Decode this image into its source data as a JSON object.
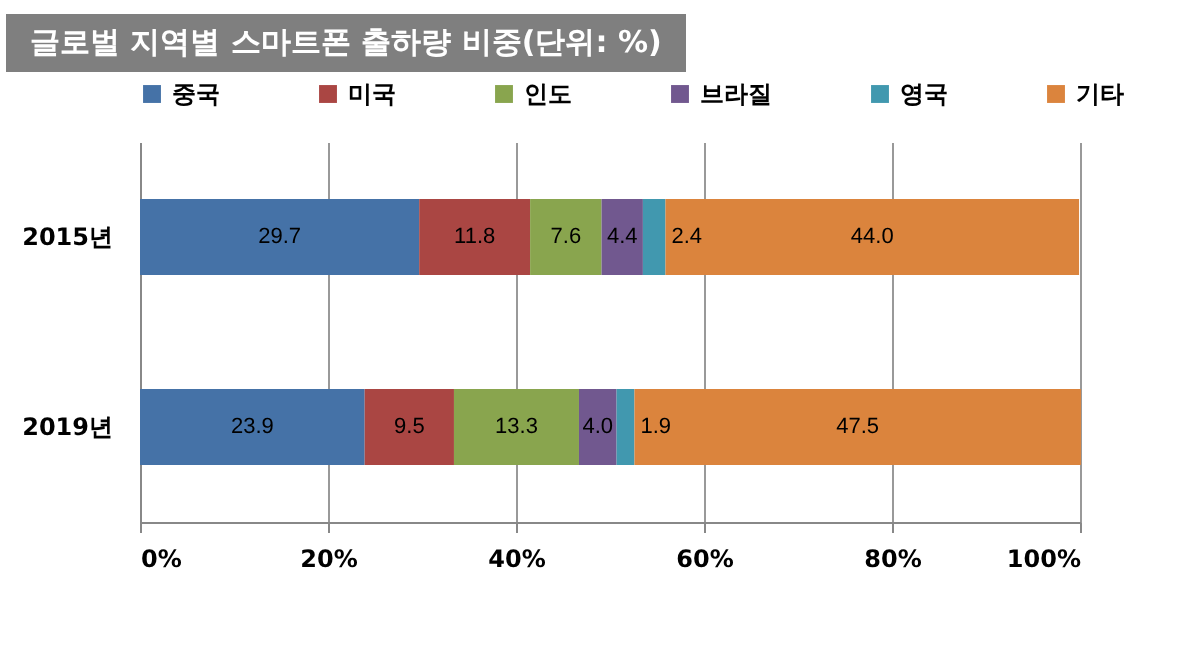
{
  "chart_data": {
    "type": "bar",
    "orientation": "horizontal",
    "stacked": true,
    "title": "글로벌 지역별 스마트폰 출하량 비중(단위: %)",
    "categories": [
      "2015년",
      "2019년"
    ],
    "series": [
      {
        "name": "중국",
        "color": "#4572a7",
        "values": [
          29.7,
          23.9
        ],
        "value_labels": [
          "29.7",
          "23.9"
        ]
      },
      {
        "name": "미국",
        "color": "#aa4643",
        "values": [
          11.8,
          9.5
        ],
        "value_labels": [
          "11.8",
          "9.5"
        ]
      },
      {
        "name": "인도",
        "color": "#89a54e",
        "values": [
          7.6,
          13.3
        ],
        "value_labels": [
          "7.6",
          "13.3"
        ]
      },
      {
        "name": "브라질",
        "color": "#71588f",
        "values": [
          4.4,
          4.0
        ],
        "value_labels": [
          "4.4",
          "4.0"
        ]
      },
      {
        "name": "영국",
        "color": "#4198af",
        "values": [
          2.4,
          1.9
        ],
        "value_labels": [
          "2.4",
          "1.9"
        ]
      },
      {
        "name": "기타",
        "color": "#db843d",
        "values": [
          44.0,
          47.5
        ],
        "value_labels": [
          "44.0",
          "47.5"
        ]
      }
    ],
    "xlim": [
      0,
      100
    ],
    "xticks": [
      {
        "value": 0,
        "label": "0%"
      },
      {
        "value": 20,
        "label": "20%"
      },
      {
        "value": 40,
        "label": "40%"
      },
      {
        "value": 60,
        "label": "60%"
      },
      {
        "value": 80,
        "label": "80%"
      },
      {
        "value": 100,
        "label": "100%"
      }
    ],
    "grid": "x",
    "legend": "top"
  }
}
